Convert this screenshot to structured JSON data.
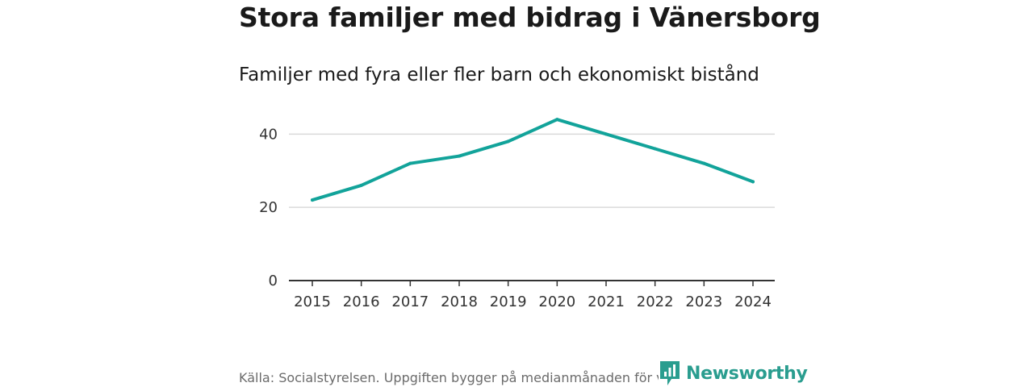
{
  "chart_data": {
    "type": "line",
    "title": "Stora familjer med bidrag i Vänersborg",
    "subtitle": "Familjer med fyra eller fler barn och ekonomiskt bistånd",
    "xlabel": "",
    "ylabel": "",
    "x": [
      "2015",
      "2016",
      "2017",
      "2018",
      "2019",
      "2020",
      "2021",
      "2022",
      "2023",
      "2024"
    ],
    "series": [
      {
        "name": "Familjer med fyra eller fler barn och ekonomiskt bistånd",
        "values": [
          22,
          26,
          32,
          34,
          38,
          44,
          40,
          36,
          32,
          27
        ]
      }
    ],
    "ylim": [
      0,
      48
    ],
    "yticks": [
      0,
      20,
      40
    ],
    "grid": true,
    "legend": "none",
    "colors": {
      "line": "#12a39a",
      "grid": "#d9d9d9",
      "axis": "#333333"
    }
  },
  "footer": {
    "source": "Källa: Socialstyrelsen. Uppgiften bygger på medianmånaden för varje år",
    "brand": "Newsworthy",
    "brand_icon": "newsworthy-logo-icon",
    "brand_color": "#2a9d8f"
  }
}
